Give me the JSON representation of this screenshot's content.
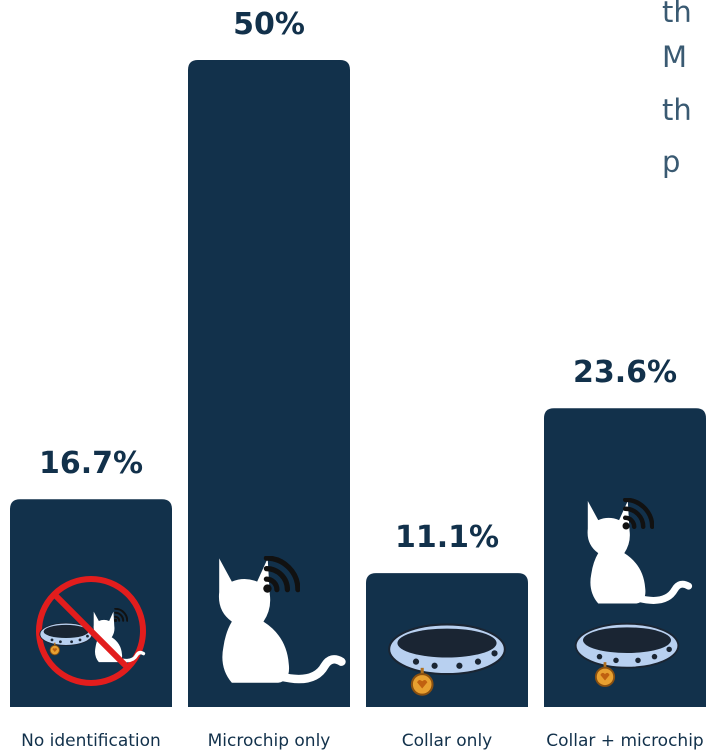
{
  "chart_data": {
    "type": "bar",
    "categories": [
      "No identification",
      "Microchip only",
      "Collar only",
      "Collar + microchip"
    ],
    "values": [
      16.7,
      50,
      11.1,
      23.6
    ],
    "value_labels": [
      "16.7%",
      "50%",
      "11.1%",
      "23.6%"
    ],
    "color": "#12314b",
    "ylim": [
      0,
      50
    ],
    "annotation": [
      "th",
      "M",
      "th",
      "p"
    ]
  }
}
